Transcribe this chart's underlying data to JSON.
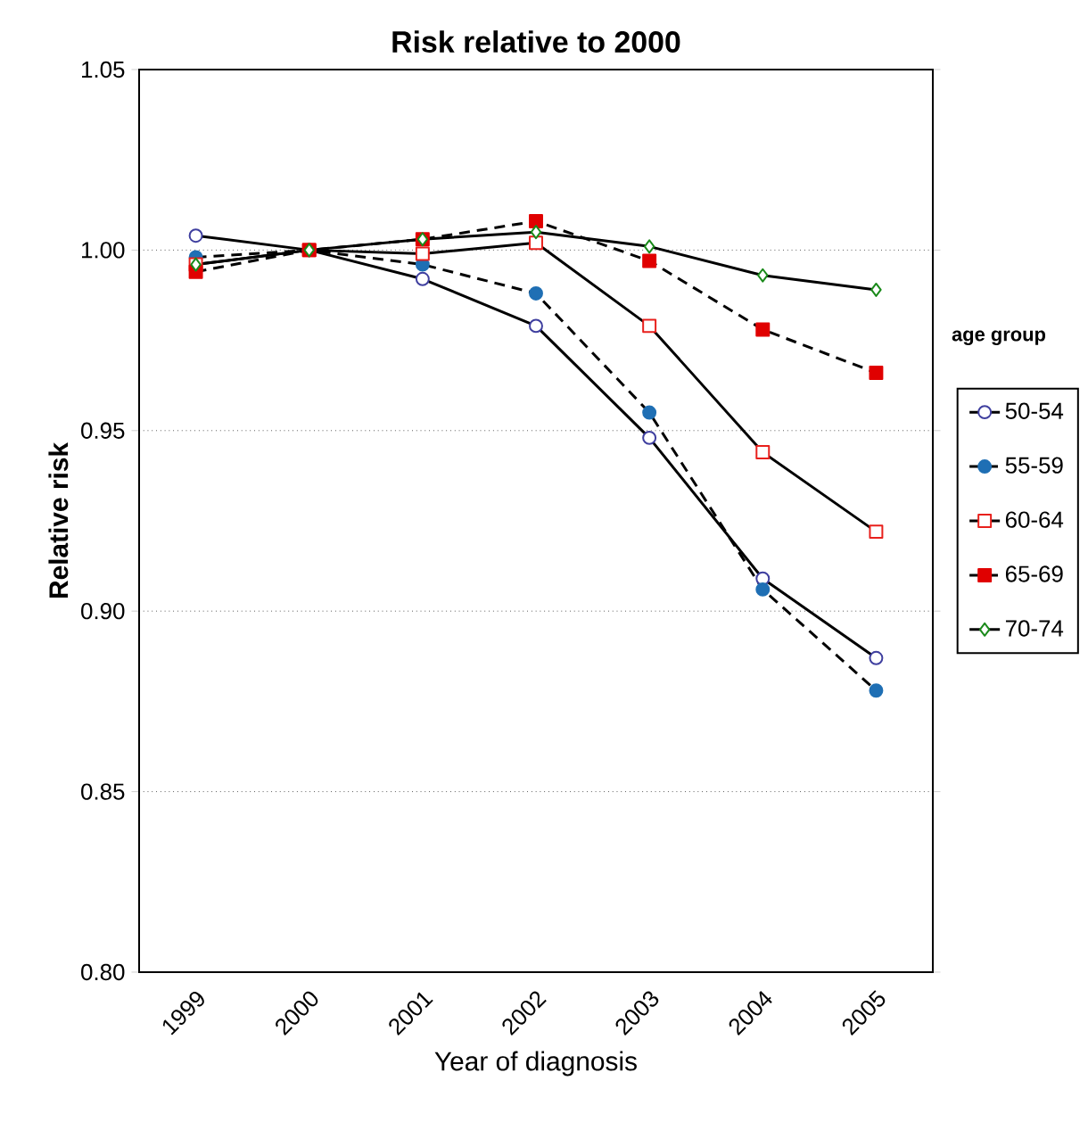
{
  "chart_data": {
    "type": "line",
    "title": "Risk relative to 2000",
    "xlabel": "Year of diagnosis",
    "ylabel": "Relative risk",
    "legend_title": "age group",
    "legend": "right",
    "grid": "y",
    "categories": [
      "1999",
      "2000",
      "2001",
      "2002",
      "2003",
      "2004",
      "2005"
    ],
    "ylim": [
      0.8,
      1.05
    ],
    "yticks": [
      {
        "value": 0.8,
        "label": "0.80"
      },
      {
        "value": 0.85,
        "label": "0.85"
      },
      {
        "value": 0.9,
        "label": "0.90"
      },
      {
        "value": 0.95,
        "label": "0.95"
      },
      {
        "value": 1.0,
        "label": "1.00"
      },
      {
        "value": 1.05,
        "label": "1.05"
      }
    ],
    "series": [
      {
        "name": "50-54",
        "color": "#3f3f9f",
        "marker": "circle",
        "line_style": "solid",
        "values": [
          1.004,
          1.0,
          0.992,
          0.979,
          0.948,
          0.909,
          0.887
        ]
      },
      {
        "name": "55-59",
        "color": "#1f6fb4",
        "marker": "circle",
        "line_style": "dashed",
        "values": [
          0.998,
          1.0,
          0.996,
          0.988,
          0.955,
          0.906,
          0.878
        ]
      },
      {
        "name": "60-64",
        "color": "#e8201c",
        "marker": "square",
        "line_style": "solid",
        "values": [
          0.996,
          1.0,
          0.999,
          1.002,
          0.979,
          0.944,
          0.922
        ]
      },
      {
        "name": "65-69",
        "color": "#e00000",
        "marker": "square",
        "line_style": "dashed",
        "values": [
          0.994,
          1.0,
          1.003,
          1.008,
          0.997,
          0.978,
          0.966
        ]
      },
      {
        "name": "70-74",
        "color": "#1a8a1a",
        "marker": "diamond",
        "line_style": "solid",
        "values": [
          0.996,
          1.0,
          1.003,
          1.005,
          1.001,
          0.993,
          0.989
        ]
      }
    ]
  }
}
